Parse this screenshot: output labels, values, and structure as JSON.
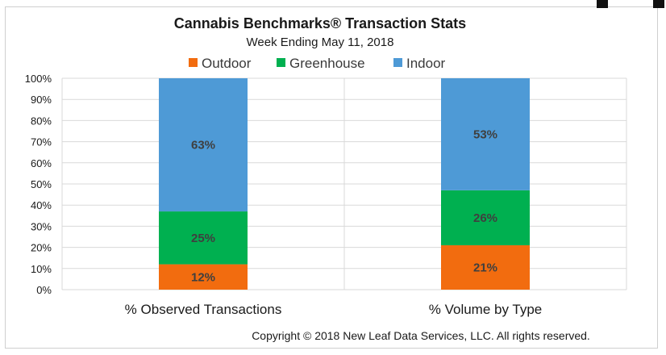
{
  "chart_data": {
    "type": "bar",
    "stacked": true,
    "title": "Cannabis Benchmarks® Transaction Stats",
    "subtitle": "Week Ending May 11, 2018",
    "categories": [
      "% Observed Transactions",
      "% Volume by Type"
    ],
    "series": [
      {
        "name": "Outdoor",
        "color": "#f26c0f",
        "values": [
          12,
          21
        ],
        "labels": [
          "12%",
          "21%"
        ]
      },
      {
        "name": "Greenhouse",
        "color": "#00b050",
        "values": [
          25,
          26
        ],
        "labels": [
          "25%",
          "26%"
        ]
      },
      {
        "name": "Indoor",
        "color": "#4e9ad6",
        "values": [
          63,
          53
        ],
        "labels": [
          "63%",
          "53%"
        ]
      }
    ],
    "ylim": [
      0,
      100
    ],
    "yticks": [
      "0%",
      "10%",
      "20%",
      "30%",
      "40%",
      "50%",
      "60%",
      "70%",
      "80%",
      "90%",
      "100%"
    ],
    "xlabel": "",
    "ylabel": "",
    "grid": true,
    "legend_position": "top"
  },
  "footer": {
    "copyright": "Copyright © 2018 New Leaf Data Services, LLC. All rights reserved."
  }
}
